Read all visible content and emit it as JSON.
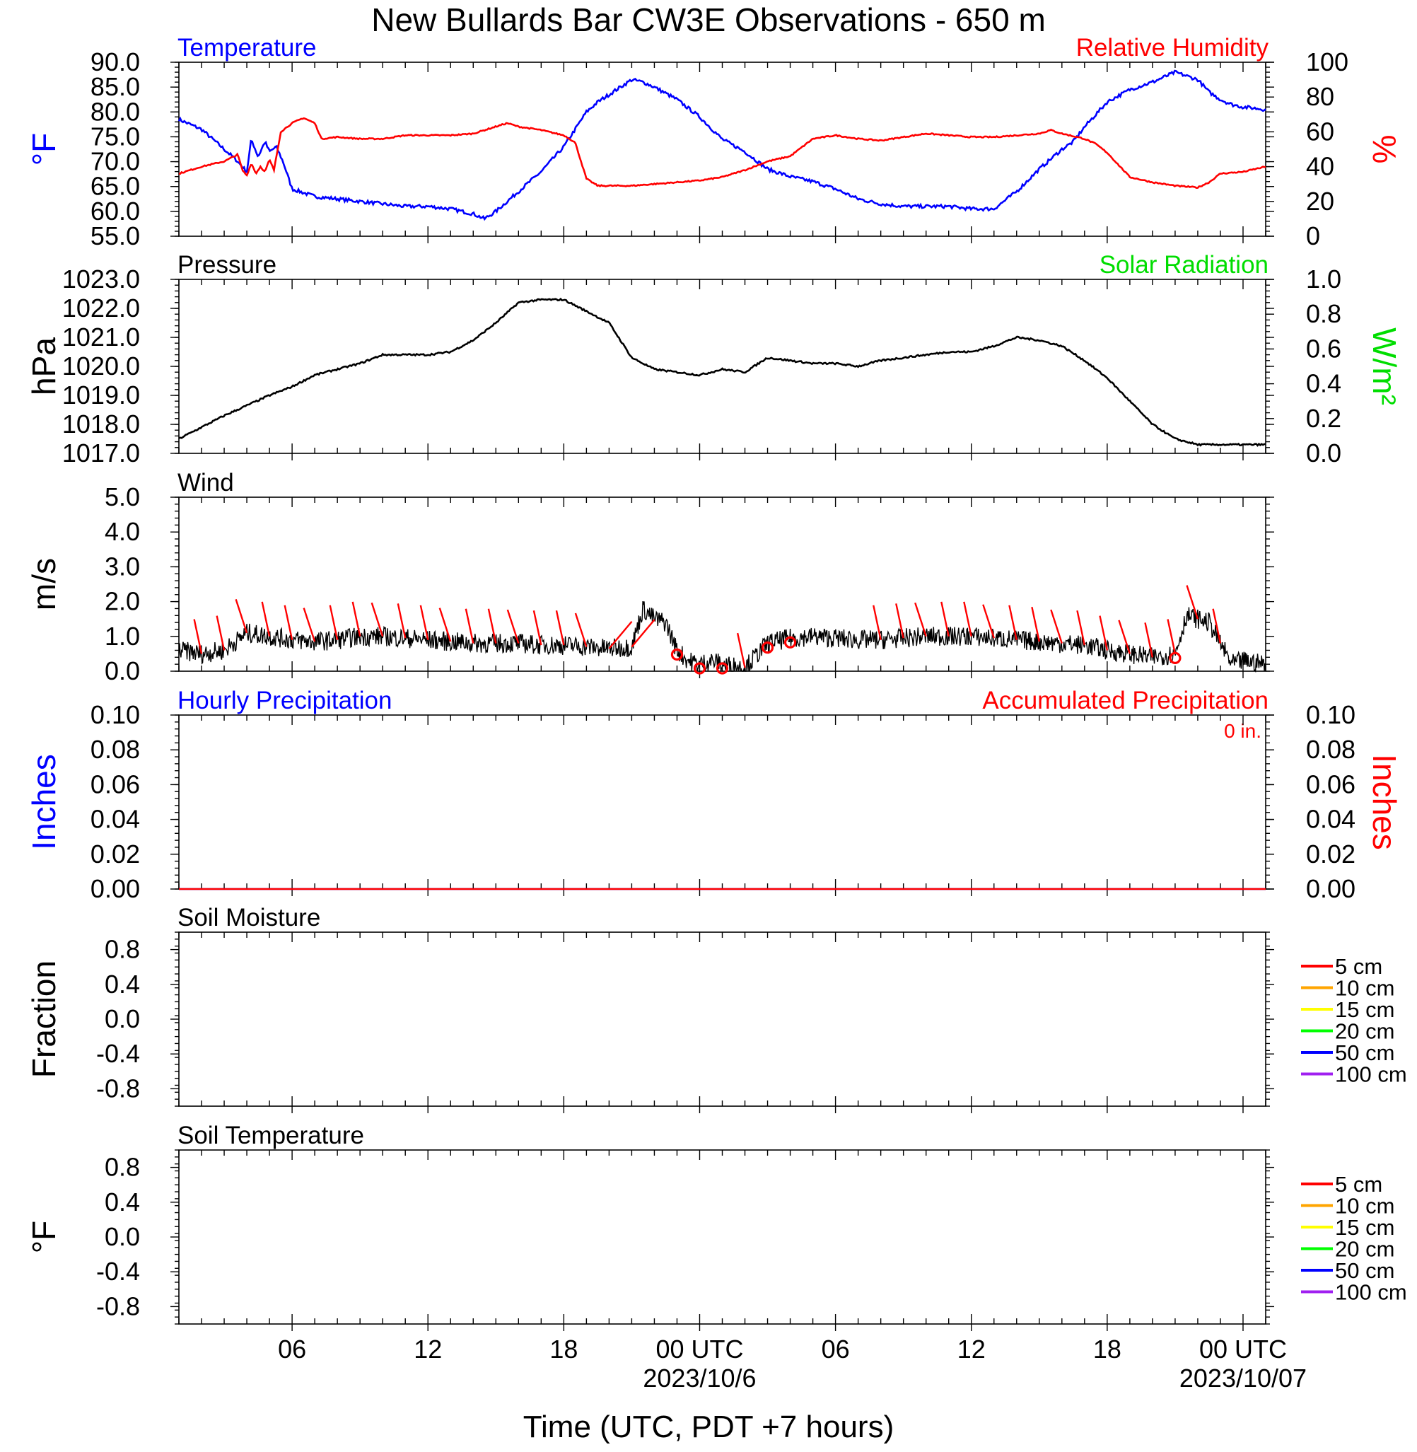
{
  "title": "New Bullards Bar CW3E Observations - 650 m",
  "xlabel": "Time (UTC, PDT +7 hours)",
  "colors": {
    "temperature": "#0000ff",
    "humidity": "#ff0000",
    "solar": "#00dd00",
    "black": "#000000",
    "precip_hourly": "#0000ff",
    "precip_accum": "#ff0000"
  },
  "x_axis": {
    "hours_span": [
      0,
      48
    ],
    "ticks": [
      {
        "hour": 5,
        "label": "06",
        "sub": ""
      },
      {
        "hour": 11,
        "label": "12",
        "sub": ""
      },
      {
        "hour": 17,
        "label": "18",
        "sub": ""
      },
      {
        "hour": 23,
        "label": "00 UTC",
        "sub": "2023/10/6"
      },
      {
        "hour": 29,
        "label": "06",
        "sub": ""
      },
      {
        "hour": 35,
        "label": "12",
        "sub": ""
      },
      {
        "hour": 41,
        "label": "18",
        "sub": ""
      },
      {
        "hour": 47,
        "label": "00 UTC",
        "sub": "2023/10/07"
      }
    ]
  },
  "chart_data": [
    {
      "type": "line",
      "panel": "temperature_humidity",
      "title_left": "Temperature",
      "title_right": "Relative Humidity",
      "ylabel_left": "°F",
      "ylabel_right": "%",
      "ylim_left": [
        55,
        90
      ],
      "ylim_right": [
        0,
        100
      ],
      "yticks_left": [
        "55.0",
        "60.0",
        "65.0",
        "70.0",
        "75.0",
        "80.0",
        "85.0",
        "90.0"
      ],
      "yticks_right": [
        "0",
        "20",
        "40",
        "60",
        "80",
        "100"
      ],
      "series": [
        {
          "name": "Temperature",
          "axis": "left",
          "x": [
            0,
            1,
            2,
            2.5,
            3,
            3.2,
            3.5,
            3.8,
            4,
            4.3,
            4.6,
            5,
            6,
            7,
            8,
            9,
            10,
            11,
            12,
            13,
            13.5,
            14,
            15,
            16,
            17,
            18,
            18.5,
            19,
            20,
            20.5,
            21,
            22,
            23,
            24,
            25,
            26,
            27,
            28,
            29,
            30,
            31,
            32,
            33,
            34,
            35,
            36,
            37,
            38,
            39,
            39.5,
            40,
            41,
            42,
            43,
            44,
            45,
            45.5,
            46,
            46.5,
            47,
            48
          ],
          "values": [
            78.5,
            76.5,
            72.5,
            70.5,
            68,
            74.5,
            71,
            74,
            72,
            73,
            70,
            64.5,
            63,
            62.5,
            62,
            61.5,
            61,
            61,
            60.5,
            59.5,
            58.5,
            60,
            64,
            68,
            73,
            80,
            82,
            83.5,
            86.5,
            86,
            85,
            82.5,
            79,
            74.5,
            72,
            68.5,
            67,
            66,
            64.5,
            62.5,
            61.5,
            61,
            61,
            61,
            60.5,
            60.5,
            64,
            68.5,
            72.5,
            74,
            77,
            82,
            84.5,
            86,
            88,
            86.5,
            84,
            82.5,
            81.5,
            81,
            80.5
          ]
        },
        {
          "name": "Relative Humidity",
          "axis": "right",
          "x": [
            0,
            1,
            2,
            2.6,
            2.8,
            3,
            3.2,
            3.4,
            3.6,
            3.8,
            4,
            4.2,
            4.5,
            5,
            5.5,
            6,
            6.3,
            7,
            8,
            9,
            10,
            11,
            12,
            13,
            14,
            14.5,
            15,
            16,
            17,
            17.5,
            18,
            18.5,
            19,
            20,
            21,
            22,
            23,
            24,
            25,
            26,
            27,
            28,
            29,
            30,
            31,
            32,
            33,
            34,
            35,
            36,
            37,
            38,
            38.5,
            39,
            40,
            40.5,
            41,
            42,
            43,
            44,
            45,
            45.5,
            46,
            47,
            48
          ],
          "values": [
            36,
            40,
            43,
            47,
            38,
            35,
            42,
            36,
            40,
            37,
            44,
            38,
            60,
            65,
            68,
            65,
            56,
            57,
            56,
            56,
            58,
            58,
            58,
            59,
            63,
            65,
            63,
            61,
            58,
            54,
            33,
            29,
            29,
            29,
            30,
            31,
            32,
            34,
            38,
            43,
            46,
            56,
            58,
            56,
            55,
            57,
            59,
            58,
            57,
            57,
            58,
            59,
            61,
            59,
            56,
            53,
            48,
            34,
            31,
            29,
            28,
            31,
            36,
            37,
            40
          ]
        }
      ]
    },
    {
      "type": "line",
      "panel": "pressure_solar",
      "title_left": "Pressure",
      "title_right": "Solar Radiation",
      "ylabel_left": "hPa",
      "ylabel_right": "W/m²",
      "ylim_left": [
        1017,
        1023
      ],
      "ylim_right": [
        0,
        1
      ],
      "yticks_left": [
        "1017.0",
        "1018.0",
        "1019.0",
        "1020.0",
        "1021.0",
        "1022.0",
        "1023.0"
      ],
      "yticks_right": [
        "0.0",
        "0.2",
        "0.4",
        "0.6",
        "0.8",
        "1.0"
      ],
      "series": [
        {
          "name": "Pressure",
          "axis": "left",
          "x": [
            0,
            2,
            4,
            5,
            6,
            7,
            8,
            9,
            10,
            11,
            12,
            13,
            14,
            15,
            16,
            17,
            18,
            19,
            20,
            21,
            22,
            23,
            24,
            25,
            26,
            27,
            28,
            29,
            30,
            31,
            32,
            33,
            34,
            35,
            36,
            37,
            38,
            39,
            40,
            41,
            42,
            43,
            44,
            45,
            46,
            47,
            48
          ],
          "values": [
            1017.5,
            1018.3,
            1019.0,
            1019.3,
            1019.7,
            1019.9,
            1020.1,
            1020.4,
            1020.4,
            1020.4,
            1020.5,
            1020.9,
            1021.5,
            1022.2,
            1022.3,
            1022.3,
            1021.9,
            1021.5,
            1020.3,
            1019.9,
            1019.8,
            1019.7,
            1019.9,
            1019.8,
            1020.3,
            1020.2,
            1020.1,
            1020.1,
            1020.0,
            1020.2,
            1020.3,
            1020.4,
            1020.5,
            1020.5,
            1020.7,
            1021.0,
            1020.9,
            1020.7,
            1020.2,
            1019.6,
            1018.8,
            1018.0,
            1017.5,
            1017.3,
            1017.3,
            1017.3,
            1017.3
          ]
        }
      ]
    },
    {
      "type": "line",
      "panel": "wind",
      "title_left": "Wind",
      "ylabel_left": "m/s",
      "ylim_left": [
        0,
        5
      ],
      "yticks_left": [
        "0.0",
        "1.0",
        "2.0",
        "3.0",
        "4.0",
        "5.0"
      ],
      "series": [
        {
          "name": "Wind",
          "axis": "left",
          "x": [
            0,
            1,
            2,
            3,
            4,
            5,
            6,
            7,
            8,
            9,
            10,
            11,
            12,
            13,
            14,
            15,
            16,
            17,
            18,
            19,
            20,
            20.5,
            21,
            21.5,
            22,
            22.5,
            23,
            23.5,
            24,
            25,
            26,
            27,
            28,
            29,
            30,
            31,
            32,
            33,
            34,
            35,
            36,
            37,
            38,
            39,
            40,
            41,
            42,
            43,
            44,
            44.5,
            45,
            45.5,
            46,
            46.5,
            47,
            48
          ],
          "values": [
            0.6,
            0.5,
            0.6,
            1.1,
            1.0,
            0.9,
            0.85,
            0.9,
            1.0,
            1.0,
            0.95,
            0.9,
            0.85,
            0.8,
            0.8,
            0.8,
            0.75,
            0.75,
            0.7,
            0.65,
            0.7,
            1.8,
            1.5,
            1.4,
            0.6,
            0.3,
            0.2,
            0.3,
            0.2,
            0.1,
            0.8,
            0.95,
            1.0,
            0.95,
            0.9,
            0.9,
            0.95,
            1.0,
            1.0,
            1.0,
            0.95,
            0.9,
            0.85,
            0.8,
            0.75,
            0.6,
            0.5,
            0.4,
            0.5,
            1.6,
            1.5,
            1.4,
            0.8,
            0.2,
            0.3,
            0.2
          ]
        }
      ],
      "barb_hours": [
        1,
        2,
        3,
        4,
        5,
        6,
        7,
        8,
        9,
        10,
        11,
        12,
        13,
        14,
        15,
        16,
        17,
        18,
        19,
        20,
        25,
        31,
        32,
        33,
        34,
        35,
        36,
        37,
        38,
        39,
        40,
        41,
        42,
        43,
        44,
        45,
        46
      ],
      "calm_hours": [
        22,
        23,
        24,
        26,
        27,
        44
      ]
    },
    {
      "type": "line",
      "panel": "precipitation",
      "title_left": "Hourly Precipitation",
      "title_right": "Accumulated Precipitation",
      "annotation": "0 in.",
      "ylabel_left": "Inches",
      "ylabel_right": "Inches",
      "ylim_left": [
        0,
        0.1
      ],
      "ylim_right": [
        0,
        0.1
      ],
      "yticks_left": [
        "0.00",
        "0.02",
        "0.04",
        "0.06",
        "0.08",
        "0.10"
      ],
      "yticks_right": [
        "0.00",
        "0.02",
        "0.04",
        "0.06",
        "0.08",
        "0.10"
      ],
      "series": [
        {
          "name": "Hourly Precipitation",
          "axis": "left",
          "x": [
            0,
            48
          ],
          "values": [
            0,
            0
          ]
        },
        {
          "name": "Accumulated Precipitation",
          "axis": "right",
          "x": [
            0,
            48
          ],
          "values": [
            0,
            0
          ]
        }
      ]
    },
    {
      "type": "line",
      "panel": "soil_moisture",
      "title_left": "Soil Moisture",
      "ylabel_left": "Fraction",
      "ylim_left": [
        -1,
        1
      ],
      "yticks_left": [
        "-0.8",
        "-0.4",
        "0.0",
        "0.4",
        "0.8"
      ],
      "legend": [
        {
          "label": "5 cm",
          "color": "#ff0000"
        },
        {
          "label": "10 cm",
          "color": "#ffa500"
        },
        {
          "label": "15 cm",
          "color": "#ffff00"
        },
        {
          "label": "20 cm",
          "color": "#00ff00"
        },
        {
          "label": "50 cm",
          "color": "#0000ff"
        },
        {
          "label": "100 cm",
          "color": "#a020f0"
        }
      ],
      "series": []
    },
    {
      "type": "line",
      "panel": "soil_temperature",
      "title_left": "Soil Temperature",
      "ylabel_left": "°F",
      "ylim_left": [
        -1,
        1
      ],
      "yticks_left": [
        "-0.8",
        "-0.4",
        "0.0",
        "0.4",
        "0.8"
      ],
      "legend": [
        {
          "label": "5 cm",
          "color": "#ff0000"
        },
        {
          "label": "10 cm",
          "color": "#ffa500"
        },
        {
          "label": "15 cm",
          "color": "#ffff00"
        },
        {
          "label": "20 cm",
          "color": "#00ff00"
        },
        {
          "label": "50 cm",
          "color": "#0000ff"
        },
        {
          "label": "100 cm",
          "color": "#a020f0"
        }
      ],
      "series": []
    }
  ]
}
